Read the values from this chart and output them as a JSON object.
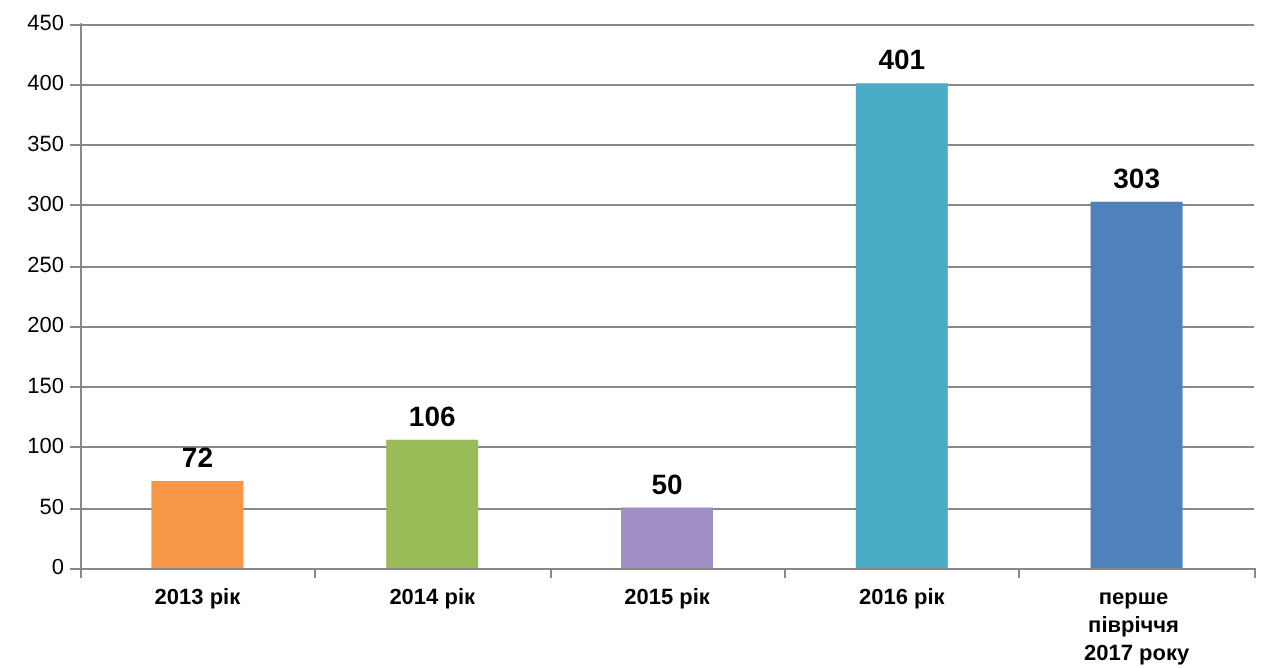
{
  "chart_data": {
    "type": "bar",
    "categories": [
      "2013 рік",
      "2014 рік",
      "2015 рік",
      "2016 рік",
      "перше півріччя 2017 року"
    ],
    "values": [
      72,
      106,
      50,
      401,
      303
    ],
    "colors": [
      "#f79646",
      "#9bbb59",
      "#9f8fc4",
      "#4bacc6",
      "#4f81bd"
    ],
    "ylim": [
      0,
      450
    ],
    "yticks": [
      0,
      50,
      100,
      150,
      200,
      250,
      300,
      350,
      400,
      450
    ],
    "grid": "y",
    "data_labels": true
  }
}
